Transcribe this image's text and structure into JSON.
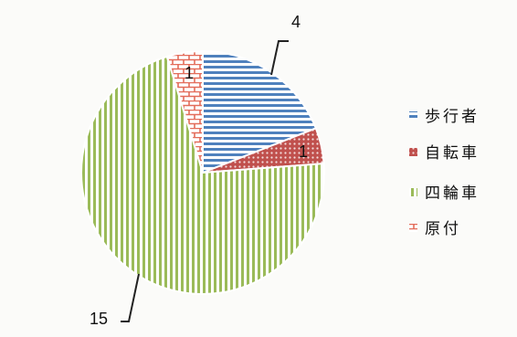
{
  "chart_data": {
    "type": "pie",
    "title": "",
    "categories": [
      "歩行者",
      "自転車",
      "四輪車",
      "原付"
    ],
    "values": [
      4,
      1,
      15,
      1
    ],
    "colors": [
      "#4f81bd",
      "#c0504d",
      "#9bbb59",
      "#e36c5a"
    ],
    "patterns": [
      "horizontal-stripes",
      "dots",
      "vertical-stripes",
      "brick"
    ],
    "data_labels": [
      "4",
      "1",
      "15",
      "1"
    ],
    "legend_position": "right"
  }
}
